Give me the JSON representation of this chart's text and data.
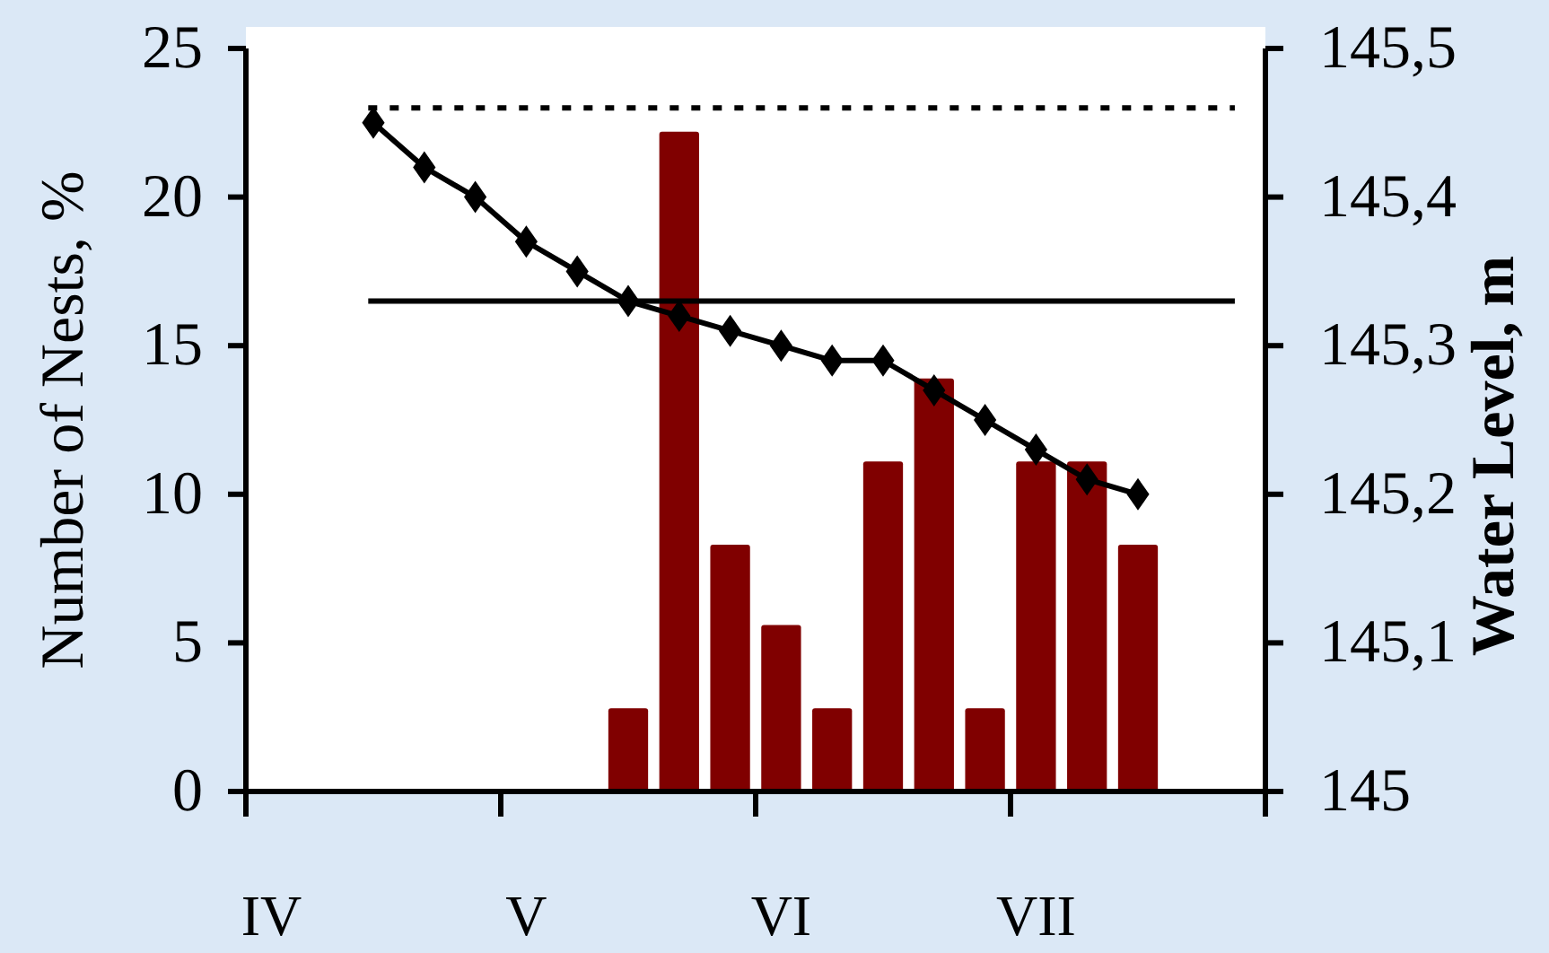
{
  "chart_data": {
    "type": "bar",
    "ylabel": "Number of Nests, %",
    "y2label": "Water Level, m",
    "categories": [
      "IV",
      null,
      null,
      null,
      null,
      "V",
      null,
      null,
      null,
      null,
      "VI",
      null,
      null,
      null,
      null,
      "VII",
      null,
      null,
      null,
      null
    ],
    "ylim": [
      0,
      25
    ],
    "yticks": [
      0,
      5,
      10,
      15,
      20,
      25
    ],
    "y2lim": [
      145,
      145.5
    ],
    "y2ticks": [
      {
        "value": 145,
        "label": "145"
      },
      {
        "value": 145.1,
        "label": "145,1"
      },
      {
        "value": 145.2,
        "label": "145,2"
      },
      {
        "value": 145.3,
        "label": "145,3"
      },
      {
        "value": 145.4,
        "label": "145,4"
      },
      {
        "value": 145.5,
        "label": "145,5"
      }
    ],
    "series": [
      {
        "color": "#800000",
        "values": [
          null,
          null,
          null,
          null,
          null,
          null,
          null,
          2.8,
          22.2,
          8.3,
          5.6,
          2.8,
          11.1,
          13.9,
          2.8,
          11.1,
          11.1,
          8.3,
          null,
          null
        ]
      },
      {
        "type": "line",
        "axis": "y2",
        "color": "#000000",
        "marker": "diamond",
        "line_style": "solid",
        "values": [
          null,
          null,
          145.45,
          145.42,
          145.4,
          145.37,
          145.35,
          145.33,
          145.32,
          145.31,
          145.3,
          145.29,
          145.29,
          145.27,
          145.25,
          145.23,
          145.21,
          145.2,
          null,
          null
        ]
      }
    ],
    "ref_lines": [
      {
        "axis": "y2",
        "value": 145.46,
        "color": "#000000",
        "line_style": "dotted"
      },
      {
        "axis": "y2",
        "value": 145.33,
        "color": "#000000",
        "line_style": "solid"
      }
    ]
  }
}
